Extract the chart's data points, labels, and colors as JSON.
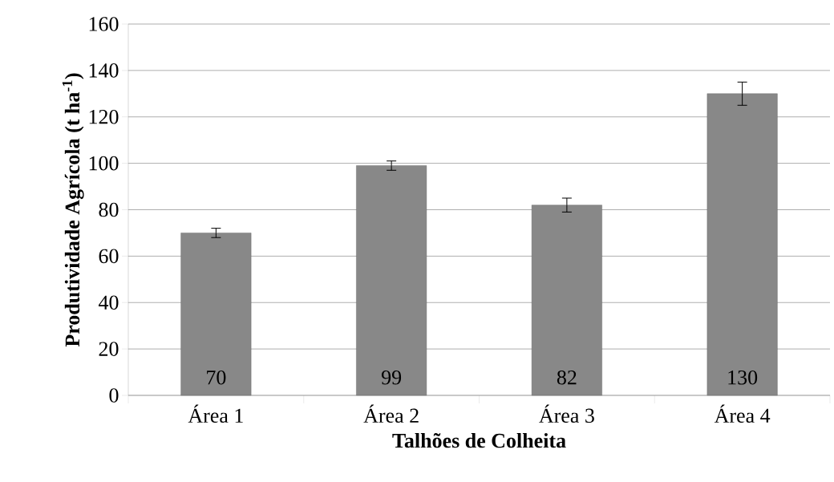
{
  "chart_data": {
    "type": "bar",
    "xlabel": "Talhões de Colheita",
    "ylabel": "Produtividade Agrícola (t ha$^{-1}$)",
    "categories": [
      "Área 1",
      "Área 2",
      "Área 3",
      "Área 4"
    ],
    "values": [
      70,
      99,
      82,
      130
    ],
    "errors": [
      2,
      2,
      3,
      5
    ],
    "color": "#888888",
    "ylim": [
      0,
      160
    ],
    "yticks": [
      0,
      20,
      40,
      60,
      80,
      100,
      120,
      140,
      160
    ],
    "grid": "y",
    "data_labels": true
  }
}
